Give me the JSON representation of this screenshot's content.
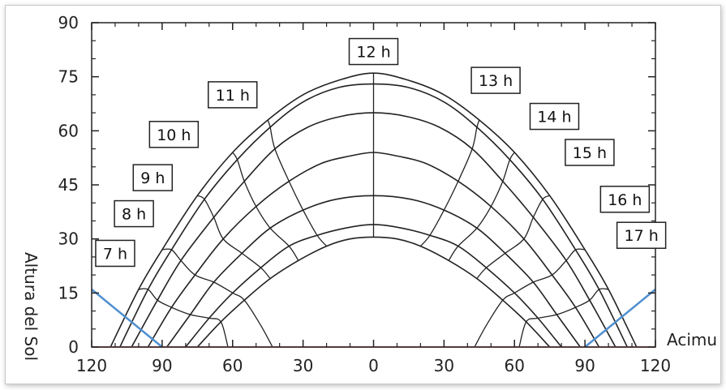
{
  "chart_data": {
    "type": "line",
    "title": "",
    "xlabel": "Acimu",
    "ylabel": "Altura del Sol",
    "xlim": [
      -120,
      120
    ],
    "ylim": [
      0,
      90
    ],
    "x_ticks": [
      -120,
      -90,
      -60,
      -30,
      0,
      30,
      60,
      90,
      120
    ],
    "x_tick_labels": [
      "120",
      "90",
      "60",
      "30",
      "0",
      "30",
      "60",
      "90",
      "120"
    ],
    "y_ticks": [
      0,
      15,
      30,
      45,
      60,
      75,
      90
    ],
    "y_tick_labels": [
      "0",
      "15",
      "30",
      "45",
      "60",
      "75",
      "90"
    ],
    "grid": false,
    "day_curves": [
      {
        "points": [
          [
            -112,
            0
          ],
          [
            -100,
            16
          ],
          [
            -90,
            27
          ],
          [
            -75,
            42
          ],
          [
            -60,
            54
          ],
          [
            -45,
            63
          ],
          [
            -30,
            70
          ],
          [
            -15,
            74
          ],
          [
            0,
            76
          ],
          [
            15,
            74
          ],
          [
            30,
            70
          ],
          [
            45,
            63
          ],
          [
            60,
            54
          ],
          [
            75,
            42
          ],
          [
            90,
            27
          ],
          [
            100,
            16
          ],
          [
            112,
            0
          ]
        ]
      },
      {
        "points": [
          [
            -108,
            0
          ],
          [
            -96,
            16
          ],
          [
            -86,
            27
          ],
          [
            -72,
            41
          ],
          [
            -58,
            52
          ],
          [
            -44,
            61
          ],
          [
            -30,
            68
          ],
          [
            -15,
            72
          ],
          [
            0,
            73
          ],
          [
            15,
            72
          ],
          [
            30,
            68
          ],
          [
            44,
            61
          ],
          [
            58,
            52
          ],
          [
            72,
            41
          ],
          [
            86,
            27
          ],
          [
            96,
            16
          ],
          [
            108,
            0
          ]
        ]
      },
      {
        "points": [
          [
            -103,
            0
          ],
          [
            -92,
            13
          ],
          [
            -82,
            24
          ],
          [
            -68,
            36
          ],
          [
            -55,
            46
          ],
          [
            -42,
            55
          ],
          [
            -28,
            61
          ],
          [
            -14,
            64
          ],
          [
            0,
            65
          ],
          [
            14,
            64
          ],
          [
            28,
            61
          ],
          [
            42,
            55
          ],
          [
            55,
            46
          ],
          [
            68,
            36
          ],
          [
            82,
            24
          ],
          [
            92,
            13
          ],
          [
            103,
            0
          ]
        ]
      },
      {
        "points": [
          [
            -96,
            0
          ],
          [
            -86,
            11
          ],
          [
            -76,
            20
          ],
          [
            -64,
            30
          ],
          [
            -50,
            39
          ],
          [
            -36,
            46
          ],
          [
            -22,
            51
          ],
          [
            -10,
            53
          ],
          [
            0,
            54
          ],
          [
            10,
            53
          ],
          [
            22,
            51
          ],
          [
            36,
            46
          ],
          [
            50,
            39
          ],
          [
            64,
            30
          ],
          [
            76,
            20
          ],
          [
            86,
            11
          ],
          [
            96,
            0
          ]
        ]
      },
      {
        "points": [
          [
            -88,
            0
          ],
          [
            -78,
            9
          ],
          [
            -68,
            18
          ],
          [
            -56,
            26
          ],
          [
            -44,
            33
          ],
          [
            -30,
            38
          ],
          [
            -16,
            41
          ],
          [
            0,
            42
          ],
          [
            16,
            41
          ],
          [
            30,
            38
          ],
          [
            44,
            33
          ],
          [
            56,
            26
          ],
          [
            68,
            18
          ],
          [
            78,
            9
          ],
          [
            88,
            0
          ]
        ]
      },
      {
        "points": [
          [
            -80,
            0
          ],
          [
            -70,
            8
          ],
          [
            -60,
            15
          ],
          [
            -48,
            22
          ],
          [
            -36,
            28
          ],
          [
            -24,
            31
          ],
          [
            -12,
            33
          ],
          [
            0,
            34
          ],
          [
            12,
            33
          ],
          [
            24,
            31
          ],
          [
            36,
            28
          ],
          [
            48,
            22
          ],
          [
            60,
            15
          ],
          [
            70,
            8
          ],
          [
            80,
            0
          ]
        ]
      },
      {
        "points": [
          [
            -75,
            0
          ],
          [
            -65,
            7
          ],
          [
            -55,
            13
          ],
          [
            -44,
            19
          ],
          [
            -32,
            24
          ],
          [
            -20,
            28
          ],
          [
            -10,
            30
          ],
          [
            0,
            30.5
          ],
          [
            10,
            30
          ],
          [
            20,
            28
          ],
          [
            32,
            24
          ],
          [
            44,
            19
          ],
          [
            55,
            13
          ],
          [
            65,
            7
          ],
          [
            75,
            0
          ]
        ]
      }
    ],
    "hour_lines": [
      {
        "label": "7 h",
        "points": [
          [
            -112,
            0
          ],
          [
            -108,
            0
          ],
          [
            -103,
            0
          ],
          [
            -96,
            0
          ],
          [
            -88,
            0
          ],
          [
            -80,
            0
          ],
          [
            -75,
            0
          ]
        ]
      },
      {
        "label": "8 h",
        "points": [
          [
            -100,
            16
          ],
          [
            -96,
            16
          ],
          [
            -92,
            13
          ],
          [
            -86,
            11
          ],
          [
            -78,
            9
          ],
          [
            -70,
            8
          ],
          [
            -65,
            7
          ],
          [
            -62,
            0
          ]
        ]
      },
      {
        "label": "9 h",
        "points": [
          [
            -90,
            27
          ],
          [
            -86,
            27
          ],
          [
            -82,
            24
          ],
          [
            -76,
            20
          ],
          [
            -68,
            18
          ],
          [
            -60,
            15
          ],
          [
            -55,
            13
          ],
          [
            -48,
            6
          ],
          [
            -43,
            0
          ]
        ]
      },
      {
        "label": "10 h",
        "points": [
          [
            -75,
            42
          ],
          [
            -72,
            41
          ],
          [
            -68,
            36
          ],
          [
            -64,
            30
          ],
          [
            -56,
            26
          ],
          [
            -48,
            22
          ],
          [
            -44,
            19
          ]
        ]
      },
      {
        "label": "11 h",
        "points": [
          [
            -60,
            54
          ],
          [
            -58,
            52
          ],
          [
            -55,
            46
          ],
          [
            -50,
            39
          ],
          [
            -44,
            33
          ],
          [
            -36,
            28
          ],
          [
            -32,
            24
          ]
        ]
      },
      {
        "label": "",
        "points": [
          [
            -45,
            63
          ],
          [
            -44,
            61
          ],
          [
            -42,
            55
          ],
          [
            -36,
            46
          ],
          [
            -30,
            38
          ],
          [
            -24,
            31
          ],
          [
            -20,
            28
          ]
        ]
      },
      {
        "label": "12 h",
        "points": [
          [
            0,
            76
          ],
          [
            0,
            30.5
          ]
        ]
      },
      {
        "label": "",
        "points": [
          [
            45,
            63
          ],
          [
            44,
            61
          ],
          [
            42,
            55
          ],
          [
            36,
            46
          ],
          [
            30,
            38
          ],
          [
            24,
            31
          ],
          [
            20,
            28
          ]
        ]
      },
      {
        "label": "13 h",
        "points": [
          [
            60,
            54
          ],
          [
            58,
            52
          ],
          [
            55,
            46
          ],
          [
            50,
            39
          ],
          [
            44,
            33
          ],
          [
            36,
            28
          ],
          [
            32,
            24
          ]
        ]
      },
      {
        "label": "14 h",
        "points": [
          [
            75,
            42
          ],
          [
            72,
            41
          ],
          [
            68,
            36
          ],
          [
            64,
            30
          ],
          [
            56,
            26
          ],
          [
            48,
            22
          ],
          [
            44,
            19
          ]
        ]
      },
      {
        "label": "15 h",
        "points": [
          [
            90,
            27
          ],
          [
            86,
            27
          ],
          [
            82,
            24
          ],
          [
            76,
            20
          ],
          [
            68,
            18
          ],
          [
            60,
            15
          ],
          [
            55,
            13
          ],
          [
            48,
            6
          ],
          [
            43,
            0
          ]
        ]
      },
      {
        "label": "16 h",
        "points": [
          [
            100,
            16
          ],
          [
            96,
            16
          ],
          [
            92,
            13
          ],
          [
            86,
            11
          ],
          [
            78,
            9
          ],
          [
            70,
            8
          ],
          [
            65,
            7
          ],
          [
            62,
            0
          ]
        ]
      },
      {
        "label": "17 h",
        "points": [
          [
            112,
            0
          ],
          [
            108,
            0
          ],
          [
            103,
            0
          ],
          [
            96,
            0
          ],
          [
            88,
            0
          ],
          [
            80,
            0
          ],
          [
            75,
            0
          ]
        ]
      }
    ],
    "hour_labels": [
      {
        "text": "7 h",
        "x": -110,
        "y": 26
      },
      {
        "text": "8 h",
        "x": -102,
        "y": 37
      },
      {
        "text": "9 h",
        "x": -94,
        "y": 47
      },
      {
        "text": "10 h",
        "x": -85,
        "y": 59
      },
      {
        "text": "11 h",
        "x": -60,
        "y": 70
      },
      {
        "text": "12 h",
        "x": 0,
        "y": 82
      },
      {
        "text": "13 h",
        "x": 52,
        "y": 74
      },
      {
        "text": "14 h",
        "x": 77,
        "y": 64
      },
      {
        "text": "15 h",
        "x": 92,
        "y": 54
      },
      {
        "text": "16 h",
        "x": 107,
        "y": 41
      },
      {
        "text": "17 h",
        "x": 114,
        "y": 31
      }
    ],
    "horizon_line": {
      "color": "#e88a8a",
      "y": 0
    },
    "obstruction_lines": [
      {
        "color": "#4f8fd0",
        "points": [
          [
            -120,
            16
          ],
          [
            -90,
            0
          ]
        ]
      },
      {
        "color": "#4f8fd0",
        "points": [
          [
            90,
            0
          ],
          [
            120,
            16
          ]
        ]
      }
    ],
    "curve_color": "#222222"
  }
}
